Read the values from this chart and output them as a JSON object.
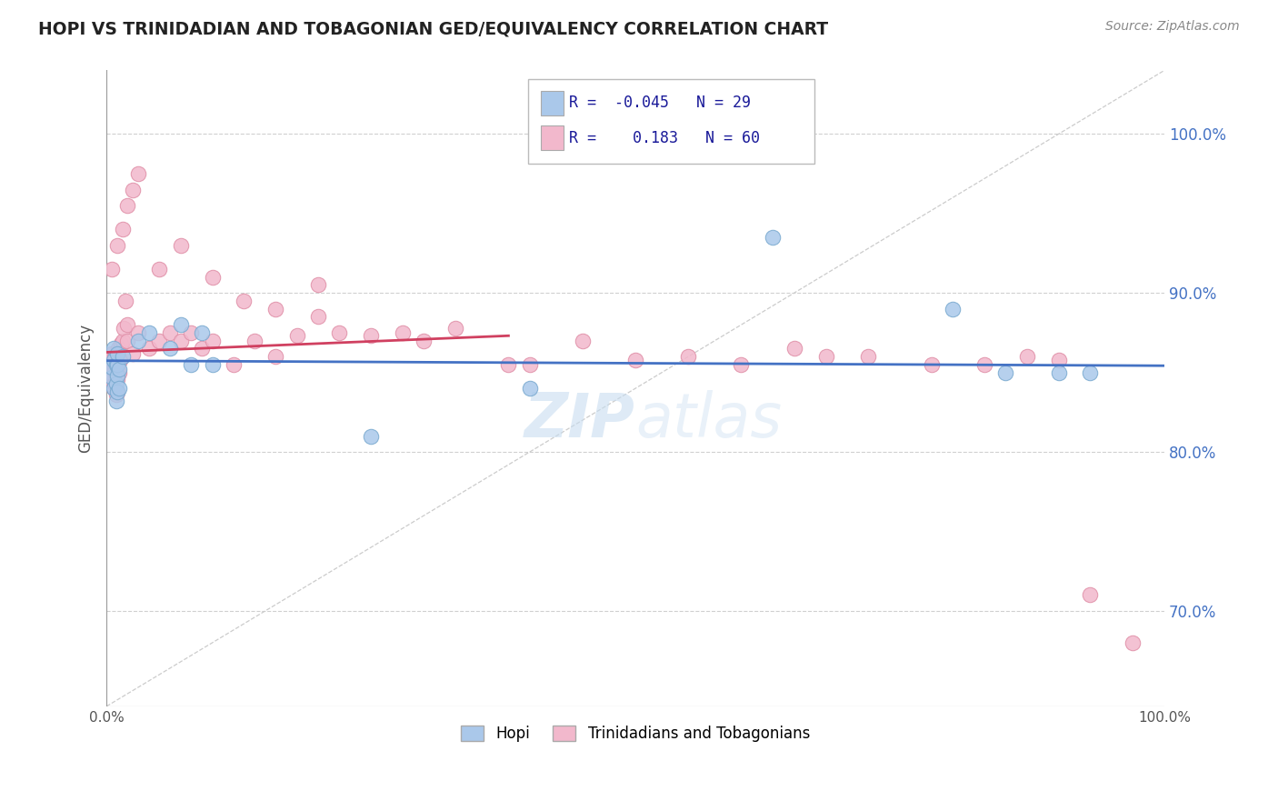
{
  "title": "HOPI VS TRINIDADIAN AND TOBAGONIAN GED/EQUIVALENCY CORRELATION CHART",
  "source_text": "Source: ZipAtlas.com",
  "ylabel": "GED/Equivalency",
  "xlim": [
    0.0,
    1.0
  ],
  "ylim": [
    0.64,
    1.04
  ],
  "yticks": [
    0.7,
    0.8,
    0.9,
    1.0
  ],
  "ytick_labels": [
    "70.0%",
    "80.0%",
    "90.0%",
    "100.0%"
  ],
  "xticks": [
    0.0,
    0.2,
    0.4,
    0.6,
    0.8,
    1.0
  ],
  "xtick_labels": [
    "0.0%",
    "",
    "",
    "",
    "",
    "100.0%"
  ],
  "hopi_R": -0.045,
  "hopi_N": 29,
  "trint_R": 0.183,
  "trint_N": 60,
  "hopi_color": "#aac8ea",
  "trint_color": "#f2b8cc",
  "hopi_edge_color": "#7aaad0",
  "trint_edge_color": "#e090a8",
  "hopi_line_color": "#4472c4",
  "trint_line_color": "#d04060",
  "legend_label_1": "Hopi",
  "legend_label_2": "Trinidadians and Tobagonians",
  "background_color": "#ffffff",
  "grid_color": "#d0d0d0",
  "hopi_scatter_x": [
    0.005,
    0.005,
    0.007,
    0.007,
    0.007,
    0.009,
    0.009,
    0.009,
    0.01,
    0.01,
    0.01,
    0.01,
    0.012,
    0.012,
    0.015,
    0.03,
    0.04,
    0.06,
    0.07,
    0.08,
    0.09,
    0.1,
    0.25,
    0.4,
    0.63,
    0.8,
    0.85,
    0.9,
    0.93
  ],
  "hopi_scatter_y": [
    0.847,
    0.853,
    0.84,
    0.858,
    0.865,
    0.832,
    0.843,
    0.855,
    0.838,
    0.848,
    0.855,
    0.862,
    0.84,
    0.852,
    0.86,
    0.87,
    0.875,
    0.865,
    0.88,
    0.855,
    0.875,
    0.855,
    0.81,
    0.84,
    0.935,
    0.89,
    0.85,
    0.85,
    0.85
  ],
  "trint_scatter_x": [
    0.003,
    0.003,
    0.005,
    0.005,
    0.005,
    0.006,
    0.006,
    0.007,
    0.007,
    0.008,
    0.008,
    0.008,
    0.009,
    0.009,
    0.01,
    0.01,
    0.011,
    0.011,
    0.012,
    0.013,
    0.014,
    0.015,
    0.016,
    0.018,
    0.02,
    0.02,
    0.025,
    0.03,
    0.04,
    0.05,
    0.06,
    0.07,
    0.08,
    0.09,
    0.1,
    0.12,
    0.14,
    0.16,
    0.18,
    0.2,
    0.22,
    0.25,
    0.28,
    0.3,
    0.33,
    0.38,
    0.4,
    0.45,
    0.5,
    0.55,
    0.6,
    0.65,
    0.68,
    0.72,
    0.78,
    0.83,
    0.87,
    0.9,
    0.93,
    0.97
  ],
  "trint_scatter_y": [
    0.85,
    0.858,
    0.845,
    0.855,
    0.862,
    0.848,
    0.856,
    0.84,
    0.852,
    0.843,
    0.851,
    0.86,
    0.836,
    0.848,
    0.838,
    0.846,
    0.855,
    0.865,
    0.85,
    0.858,
    0.868,
    0.87,
    0.878,
    0.895,
    0.87,
    0.88,
    0.862,
    0.875,
    0.865,
    0.87,
    0.875,
    0.87,
    0.875,
    0.865,
    0.87,
    0.855,
    0.87,
    0.86,
    0.873,
    0.885,
    0.875,
    0.873,
    0.875,
    0.87,
    0.878,
    0.855,
    0.855,
    0.87,
    0.858,
    0.86,
    0.855,
    0.865,
    0.86,
    0.86,
    0.855,
    0.855,
    0.86,
    0.858,
    0.71,
    0.68
  ],
  "trint_extra_x": [
    0.005,
    0.01,
    0.015,
    0.02,
    0.025,
    0.03,
    0.05,
    0.07,
    0.1,
    0.13,
    0.16,
    0.2
  ],
  "trint_extra_y": [
    0.915,
    0.93,
    0.94,
    0.955,
    0.965,
    0.975,
    0.915,
    0.93,
    0.91,
    0.895,
    0.89,
    0.905
  ]
}
